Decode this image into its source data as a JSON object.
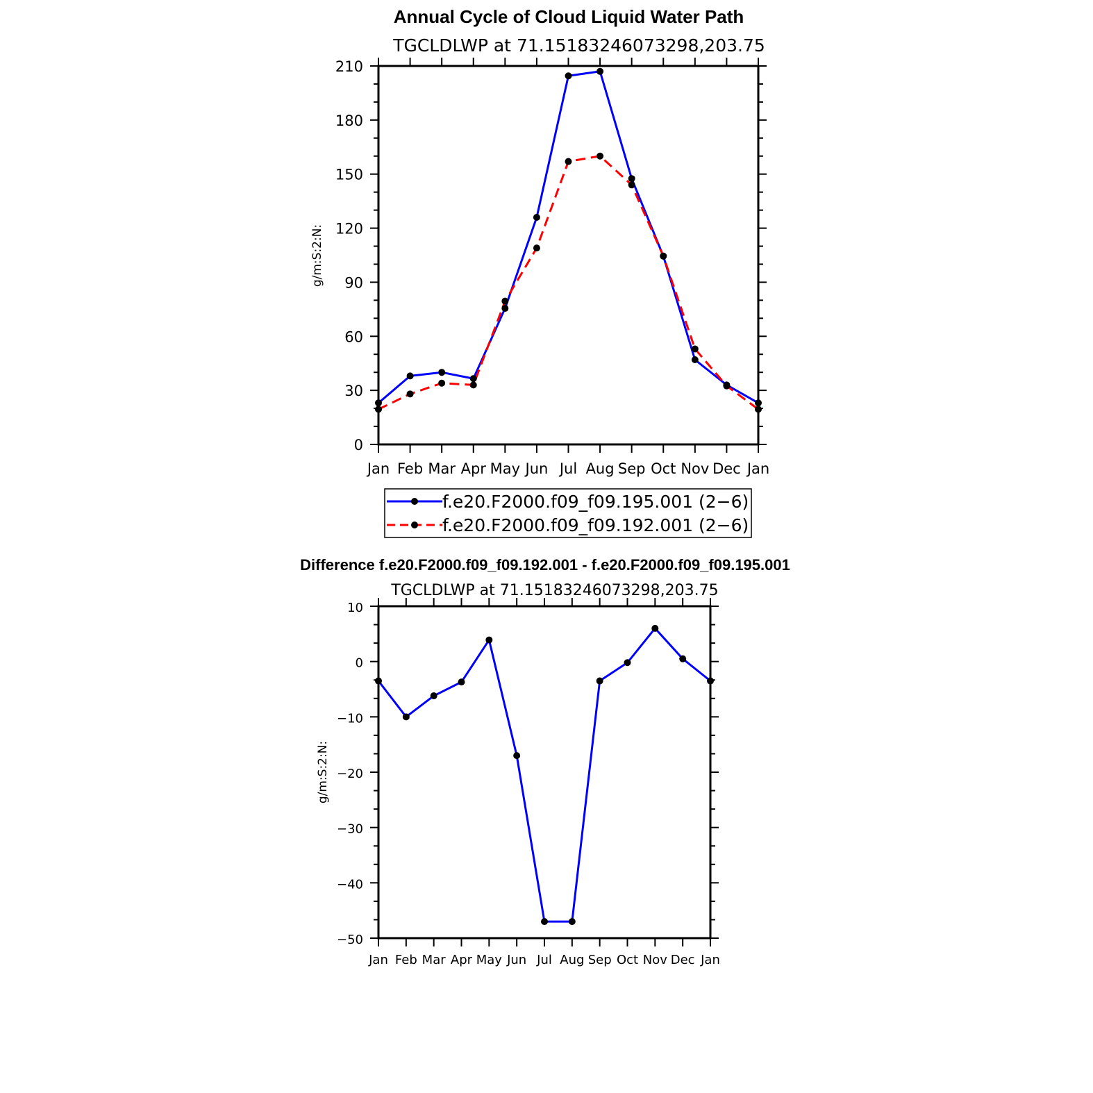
{
  "colors": {
    "series1": "#0000ff",
    "series2": "#ff0000",
    "marker": "#000000",
    "axis": "#000000"
  },
  "chart_data": [
    {
      "type": "line",
      "title": "Annual Cycle of Cloud Liquid Water Path",
      "subtitle": "TGCLDLWP at 71.15183246073298,203.75",
      "ylabel": "g/m:S:2:N:",
      "xlabel": "",
      "categories": [
        "Jan",
        "Feb",
        "Mar",
        "Apr",
        "May",
        "Jun",
        "Jul",
        "Aug",
        "Sep",
        "Oct",
        "Nov",
        "Dec",
        "Jan"
      ],
      "ylim": [
        0,
        210
      ],
      "yticks": [
        0,
        30,
        60,
        90,
        120,
        150,
        180,
        210
      ],
      "grid": false,
      "legend": "bottom",
      "series": [
        {
          "name": "f.e20.F2000.f09_f09.195.001 (2−6)",
          "style": "solid",
          "color": "#0000ff",
          "values": [
            23,
            38,
            40,
            36.5,
            75.5,
            126,
            204.5,
            207,
            147.5,
            104.5,
            47,
            33,
            23
          ]
        },
        {
          "name": "f.e20.F2000.f09_f09.192.001 (2−6)",
          "style": "dashed",
          "color": "#ff0000",
          "values": [
            19.5,
            28,
            34,
            33,
            79.5,
            109,
            157,
            160,
            144,
            104.5,
            53,
            32.5,
            19.5
          ]
        }
      ]
    },
    {
      "type": "line",
      "title": "Difference f.e20.F2000.f09_f09.192.001 - f.e20.F2000.f09_f09.195.001",
      "subtitle": "TGCLDLWP at 71.15183246073298,203.75",
      "ylabel": "g/m:S:2:N:",
      "xlabel": "",
      "categories": [
        "Jan",
        "Feb",
        "Mar",
        "Apr",
        "May",
        "Jun",
        "Jul",
        "Aug",
        "Sep",
        "Oct",
        "Nov",
        "Dec",
        "Jan"
      ],
      "ylim": [
        -50,
        10
      ],
      "yticks": [
        -50,
        -40,
        -30,
        -20,
        -10,
        0,
        10
      ],
      "grid": false,
      "series": [
        {
          "style": "solid",
          "color": "#0000ff",
          "values": [
            -3.5,
            -10,
            -6.2,
            -3.7,
            3.9,
            -17,
            -47,
            -47,
            -3.5,
            -0.2,
            6,
            0.5,
            -3.5
          ]
        }
      ]
    }
  ]
}
